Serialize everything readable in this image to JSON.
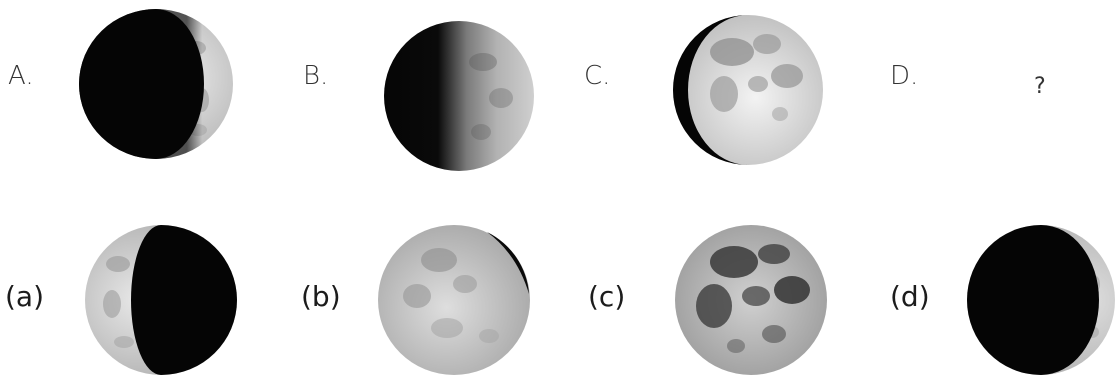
{
  "top_row": {
    "labels": [
      "A.",
      "B.",
      "C.",
      "D."
    ],
    "unknown_mark": "?",
    "moons": [
      {
        "icon": "waxing-crescent-moon-icon",
        "lit_side": "right",
        "lit_fraction": 0.12
      },
      {
        "icon": "first-quarter-moon-icon",
        "lit_side": "right",
        "lit_fraction": 0.5
      },
      {
        "icon": "waxing-gibbous-moon-icon",
        "lit_side": "right",
        "lit_fraction": 0.88
      }
    ]
  },
  "options": {
    "labels": [
      "(a)",
      "(b)",
      "(c)",
      "(d)"
    ],
    "moons": [
      {
        "icon": "waning-crescent-moon-icon",
        "lit_side": "left",
        "lit_fraction": 0.3
      },
      {
        "icon": "waning-gibbous-moon-icon",
        "lit_side": "left",
        "lit_fraction": 0.92
      },
      {
        "icon": "full-moon-icon",
        "lit_side": "both",
        "lit_fraction": 1.0
      },
      {
        "icon": "waxing-crescent-moon-icon",
        "lit_side": "right",
        "lit_fraction": 0.08
      }
    ]
  },
  "colors": {
    "moon_dark": "#050505",
    "moon_light": "#d9d9d9",
    "moon_mare": "#9a9a9a",
    "full_moon_light": "#c8c8c8",
    "full_moon_mare": "#3a3a3a"
  }
}
